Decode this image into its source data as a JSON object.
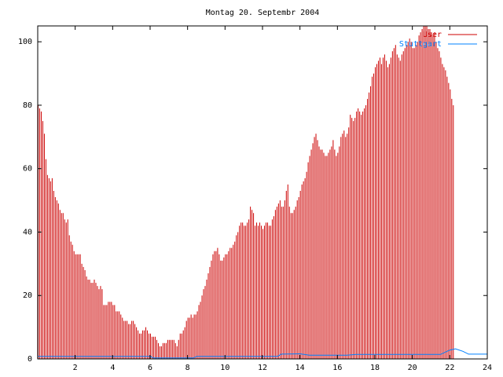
{
  "chart_data": {
    "type": "bar",
    "title": "Montag 20. Septembr 2004",
    "xlabel": "",
    "ylabel": "",
    "xlim": [
      0,
      24
    ],
    "ylim": [
      0,
      105
    ],
    "x_ticks": [
      "2",
      "4",
      "6",
      "8",
      "10",
      "12",
      "14",
      "16",
      "18",
      "20",
      "22",
      "24"
    ],
    "y_ticks": [
      "0",
      "20",
      "40",
      "60",
      "80",
      "100"
    ],
    "grid": false,
    "legend_position": "top-right",
    "series": [
      {
        "name": "User",
        "color": "#cc0000",
        "style": "impulses",
        "step_minutes": 5,
        "values": [
          80,
          79,
          78,
          75,
          71,
          63,
          58,
          57,
          56,
          57,
          53,
          51,
          50,
          49,
          47,
          46,
          46,
          44,
          43,
          44,
          39,
          37,
          36,
          34,
          33,
          33,
          33,
          33,
          30,
          29,
          28,
          26,
          25,
          25,
          24,
          24,
          25,
          24,
          23,
          22,
          23,
          22,
          17,
          17,
          17,
          18,
          18,
          18,
          17,
          17,
          15,
          15,
          15,
          14,
          13,
          12,
          12,
          12,
          11,
          11,
          12,
          12,
          11,
          10,
          9,
          8,
          8,
          9,
          9,
          10,
          9,
          8,
          8,
          7,
          7,
          7,
          6,
          5,
          4,
          4,
          5,
          5,
          5,
          6,
          6,
          6,
          6,
          6,
          5,
          4,
          6,
          8,
          8,
          9,
          10,
          12,
          13,
          13,
          14,
          13,
          14,
          14,
          15,
          17,
          18,
          20,
          22,
          23,
          25,
          27,
          29,
          31,
          33,
          34,
          34,
          35,
          33,
          31,
          31,
          32,
          33,
          33,
          34,
          35,
          35,
          36,
          37,
          39,
          40,
          42,
          43,
          43,
          42,
          42,
          43,
          44,
          48,
          47,
          46,
          42,
          43,
          42,
          43,
          42,
          41,
          42,
          43,
          43,
          42,
          42,
          44,
          45,
          47,
          48,
          49,
          50,
          48,
          48,
          50,
          53,
          55,
          48,
          46,
          46,
          47,
          48,
          50,
          51,
          53,
          55,
          56,
          57,
          59,
          62,
          64,
          66,
          68,
          70,
          71,
          69,
          67,
          66,
          66,
          65,
          64,
          64,
          65,
          66,
          67,
          69,
          66,
          64,
          65,
          67,
          70,
          71,
          72,
          70,
          71,
          73,
          77,
          76,
          75,
          76,
          78,
          79,
          78,
          77,
          78,
          79,
          80,
          82,
          84,
          86,
          89,
          90,
          92,
          93,
          94,
          95,
          93,
          95,
          96,
          94,
          92,
          93,
          95,
          97,
          98,
          99,
          96,
          95,
          94,
          96,
          97,
          98,
          99,
          100,
          101,
          100,
          98,
          98,
          99,
          100,
          102,
          103,
          104,
          105,
          105,
          105,
          104,
          104,
          103,
          102,
          103,
          100,
          98,
          97,
          95,
          93,
          92,
          91,
          89,
          87,
          85,
          82,
          80
        ]
      },
      {
        "name": "Stuttgart",
        "color": "#0080ff",
        "style": "lines",
        "points": [
          [
            0,
            0.8
          ],
          [
            6,
            0.8
          ],
          [
            6.2,
            0.3
          ],
          [
            8.3,
            0.3
          ],
          [
            8.5,
            0.8
          ],
          [
            12.8,
            0.8
          ],
          [
            13.0,
            1.5
          ],
          [
            14.0,
            1.6
          ],
          [
            14.5,
            1.2
          ],
          [
            16.5,
            1.2
          ],
          [
            17.0,
            1.4
          ],
          [
            21.5,
            1.4
          ],
          [
            22.0,
            2.8
          ],
          [
            22.3,
            3.2
          ],
          [
            22.7,
            2.4
          ],
          [
            23.0,
            1.5
          ],
          [
            24,
            1.5
          ]
        ]
      }
    ]
  }
}
